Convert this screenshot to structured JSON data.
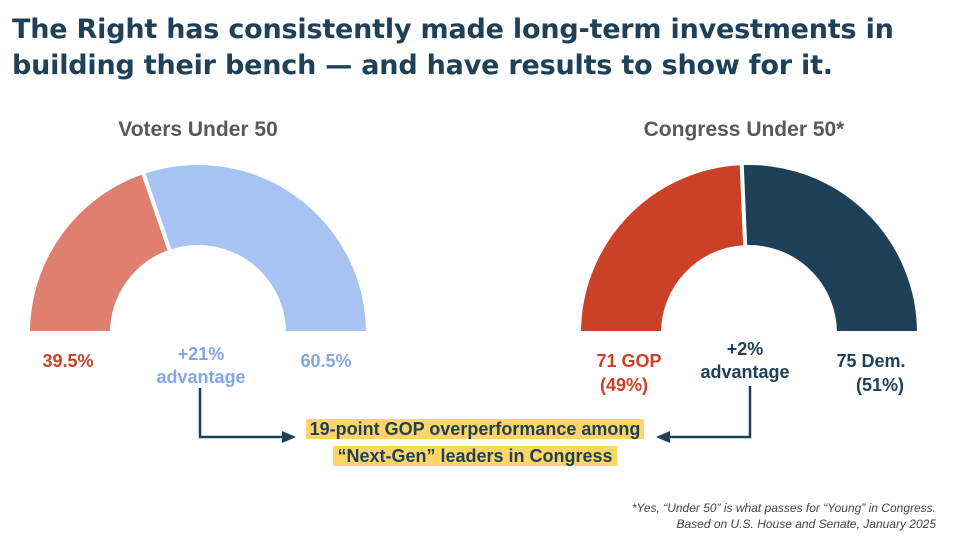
{
  "title": "The Right has consistently made long-term investments in building their bench — and have results to show for it.",
  "chart_data": [
    {
      "type": "pie",
      "variant": "half-donut",
      "title": "Voters Under 50",
      "slices": [
        {
          "label": "39.5%",
          "value": 39.5,
          "color": "#df7f6d"
        },
        {
          "label": "60.5%",
          "value": 60.5,
          "color": "#a6c3f4"
        }
      ],
      "annotation_line1": "+21%",
      "annotation_line2": "advantage",
      "annotation_color": "#84a7e3"
    },
    {
      "type": "pie",
      "variant": "half-donut",
      "title": "Congress Under 50*",
      "slices": [
        {
          "label_line1": "71 GOP",
          "label_line2": "(49%)",
          "value": 71,
          "color": "#cb4127"
        },
        {
          "label_line1": "75 Dem.",
          "label_line2": "(51%)",
          "value": 75,
          "color": "#1e4158"
        }
      ],
      "annotation_line1": "+2%",
      "annotation_line2": "advantage",
      "annotation_color": "#1e4158"
    }
  ],
  "callout": {
    "text": "19-point GOP overperformance among “Next-Gen” leaders in Congress",
    "highlight_color": "#ffd665"
  },
  "footnote": {
    "line1": "*Yes, “Under 50” is what passes for “Young” in Congress.",
    "line2": "Based on U.S. House and Senate, January 2025"
  }
}
